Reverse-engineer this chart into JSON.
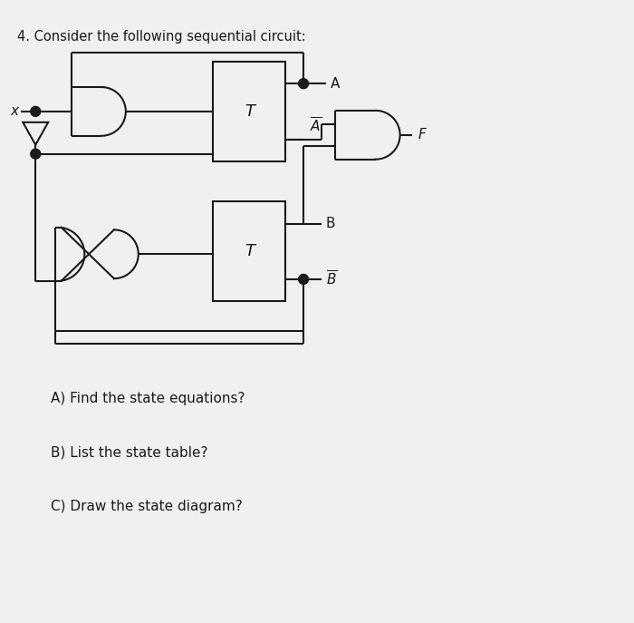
{
  "title": "4. Consider the following sequential circuit:",
  "title_fontsize": 10.5,
  "questions": [
    "A) Find the state equations?",
    "B) List the state table?",
    "C) Draw the state diagram?"
  ],
  "questions_fontsize": 11,
  "bg_color": "#f0f0f0",
  "line_color": "#1a1a1a",
  "lw": 1.5
}
